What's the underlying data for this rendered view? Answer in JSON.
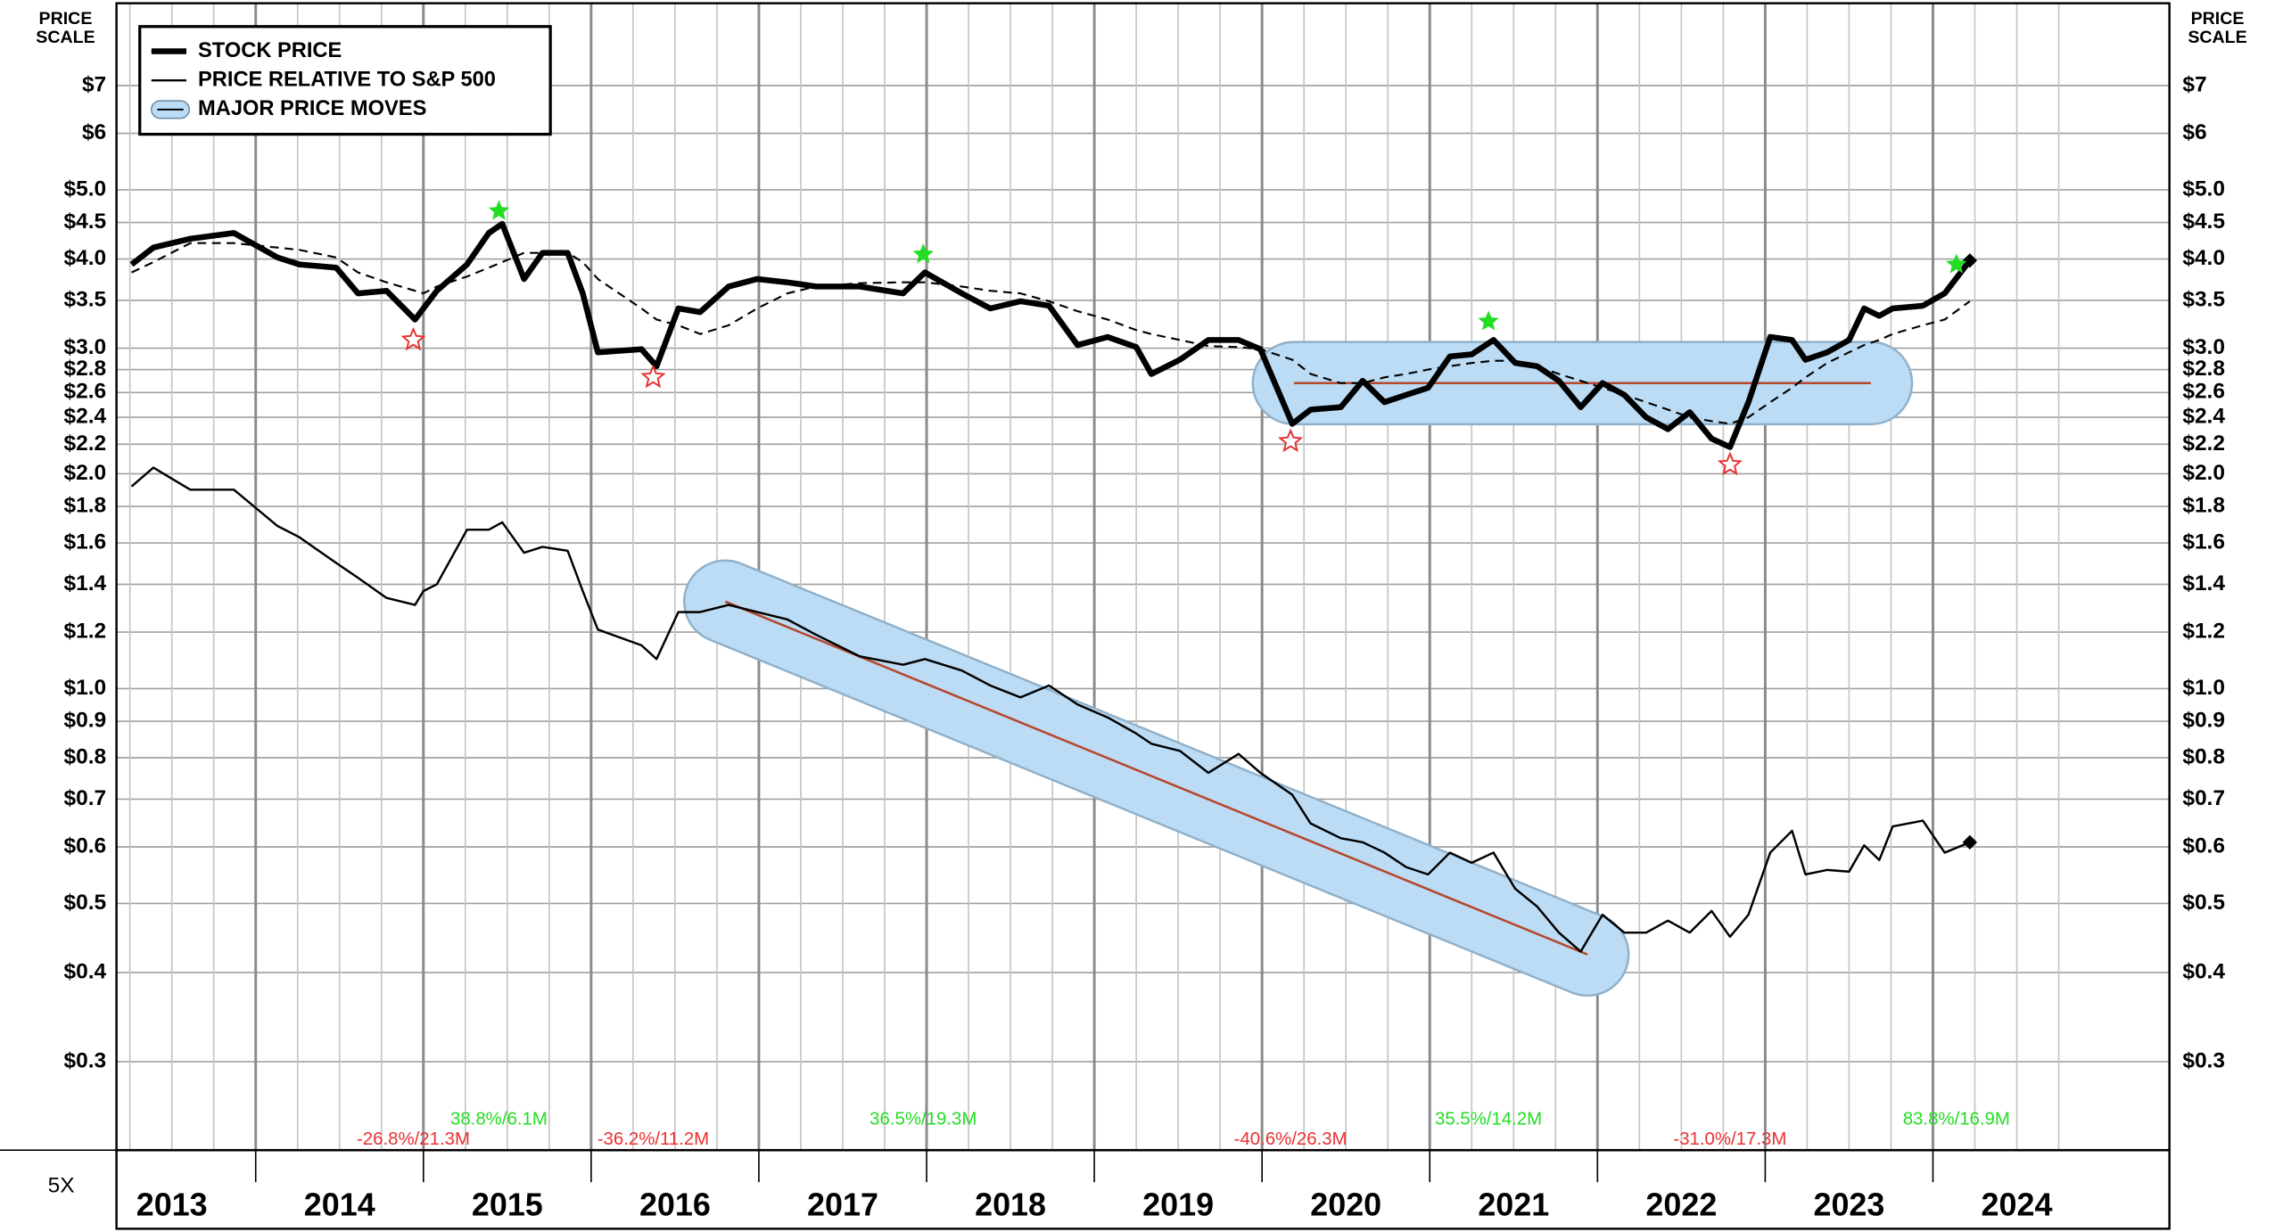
{
  "chart_data": {
    "type": "line",
    "price_scale_label": [
      "PRICE",
      "SCALE"
    ],
    "scale_factor_label": "5X",
    "log_scale": true,
    "grid": true,
    "legend_position": "upper left",
    "xlim": [
      2013.17,
      2025.41
    ],
    "xticks": [
      2013,
      2014,
      2015,
      2016,
      2017,
      2018,
      2019,
      2020,
      2021,
      2022,
      2023,
      2024
    ],
    "ylim": [
      0.2255,
      9.13
    ],
    "yticks": [
      {
        "value": 7,
        "label": "$7"
      },
      {
        "value": 6,
        "label": "$6"
      },
      {
        "value": 5,
        "label": "$5.0"
      },
      {
        "value": 4.5,
        "label": "$4.5"
      },
      {
        "value": 4,
        "label": "$4.0"
      },
      {
        "value": 3.5,
        "label": "$3.5"
      },
      {
        "value": 3,
        "label": "$3.0"
      },
      {
        "value": 2.8,
        "label": "$2.8"
      },
      {
        "value": 2.6,
        "label": "$2.6"
      },
      {
        "value": 2.4,
        "label": "$2.4"
      },
      {
        "value": 2.2,
        "label": "$2.2"
      },
      {
        "value": 2,
        "label": "$2.0"
      },
      {
        "value": 1.8,
        "label": "$1.8"
      },
      {
        "value": 1.6,
        "label": "$1.6"
      },
      {
        "value": 1.4,
        "label": "$1.4"
      },
      {
        "value": 1.2,
        "label": "$1.2"
      },
      {
        "value": 1,
        "label": "$1.0"
      },
      {
        "value": 0.9,
        "label": "$0.9"
      },
      {
        "value": 0.8,
        "label": "$0.8"
      },
      {
        "value": 0.7,
        "label": "$0.7"
      },
      {
        "value": 0.6,
        "label": "$0.6"
      },
      {
        "value": 0.5,
        "label": "$0.5"
      },
      {
        "value": 0.4,
        "label": "$0.4"
      },
      {
        "value": 0.3,
        "label": "$0.3"
      }
    ],
    "x": [
      2013.26,
      2013.39,
      2013.61,
      2013.87,
      2014.13,
      2014.26,
      2014.48,
      2014.61,
      2014.78,
      2014.95,
      2015.0,
      2015.08,
      2015.26,
      2015.39,
      2015.47,
      2015.6,
      2015.71,
      2015.86,
      2015.95,
      2016.04,
      2016.3,
      2016.39,
      2016.52,
      2016.65,
      2016.82,
      2016.99,
      2017.17,
      2017.34,
      2017.6,
      2017.86,
      2017.99,
      2018.21,
      2018.38,
      2018.56,
      2018.73,
      2018.9,
      2019.08,
      2019.25,
      2019.34,
      2019.51,
      2019.68,
      2019.86,
      2019.99,
      2020.18,
      2020.29,
      2020.47,
      2020.6,
      2020.73,
      2020.86,
      2020.99,
      2021.12,
      2021.25,
      2021.38,
      2021.51,
      2021.64,
      2021.77,
      2021.9,
      2022.03,
      2022.16,
      2022.29,
      2022.42,
      2022.55,
      2022.68,
      2022.79,
      2022.9,
      2023.03,
      2023.16,
      2023.24,
      2023.37,
      2023.5,
      2023.59,
      2023.68,
      2023.76,
      2023.94,
      2024.07,
      2024.22
    ],
    "series": [
      {
        "name": "STOCK PRICE",
        "color": "#000000",
        "line_width": 4,
        "values": [
          3.93,
          4.15,
          4.27,
          4.35,
          4.02,
          3.93,
          3.89,
          3.58,
          3.61,
          3.29,
          3.41,
          3.61,
          3.93,
          4.35,
          4.48,
          3.75,
          4.08,
          4.08,
          3.58,
          2.96,
          2.99,
          2.83,
          3.41,
          3.37,
          3.66,
          3.75,
          3.71,
          3.66,
          3.66,
          3.58,
          3.83,
          3.58,
          3.41,
          3.49,
          3.44,
          3.03,
          3.11,
          3.01,
          2.76,
          2.89,
          3.08,
          3.08,
          2.99,
          2.35,
          2.46,
          2.48,
          2.7,
          2.52,
          2.58,
          2.64,
          2.92,
          2.94,
          3.08,
          2.86,
          2.83,
          2.7,
          2.48,
          2.68,
          2.58,
          2.4,
          2.31,
          2.44,
          2.24,
          2.18,
          2.52,
          3.11,
          3.08,
          2.89,
          2.96,
          3.08,
          3.41,
          3.33,
          3.41,
          3.44,
          3.58,
          3.98
        ]
      },
      {
        "name": "PRICE RELATIVE TO S&P 500",
        "color": "#000000",
        "line_width": 1.5,
        "values": [
          1.92,
          2.04,
          1.9,
          1.9,
          1.69,
          1.63,
          1.5,
          1.43,
          1.34,
          1.31,
          1.37,
          1.4,
          1.67,
          1.67,
          1.71,
          1.55,
          1.58,
          1.56,
          1.37,
          1.21,
          1.15,
          1.1,
          1.28,
          1.28,
          1.31,
          1.28,
          1.25,
          1.19,
          1.11,
          1.08,
          1.1,
          1.06,
          1.01,
          0.972,
          1.01,
          0.95,
          0.911,
          0.865,
          0.837,
          0.818,
          0.762,
          0.81,
          0.762,
          0.71,
          0.647,
          0.617,
          0.609,
          0.589,
          0.562,
          0.549,
          0.589,
          0.57,
          0.589,
          0.524,
          0.495,
          0.455,
          0.428,
          0.482,
          0.455,
          0.455,
          0.473,
          0.455,
          0.488,
          0.449,
          0.482,
          0.589,
          0.632,
          0.549,
          0.557,
          0.554,
          0.603,
          0.575,
          0.641,
          0.653,
          0.589,
          0.609
        ]
      },
      {
        "color": "#000000",
        "line_width": 1.3,
        "dashed": true,
        "values": [
          3.83,
          3.96,
          4.21,
          4.21,
          4.15,
          4.12,
          4.02,
          3.83,
          3.71,
          3.61,
          3.58,
          3.66,
          3.78,
          3.89,
          3.96,
          4.08,
          4.08,
          4.08,
          3.96,
          3.75,
          3.41,
          3.29,
          3.23,
          3.14,
          3.23,
          3.41,
          3.58,
          3.66,
          3.7,
          3.71,
          3.71,
          3.66,
          3.61,
          3.58,
          3.49,
          3.38,
          3.29,
          3.18,
          3.14,
          3.08,
          3.02,
          3.01,
          2.99,
          2.89,
          2.76,
          2.68,
          2.68,
          2.73,
          2.76,
          2.8,
          2.83,
          2.86,
          2.88,
          2.88,
          2.83,
          2.76,
          2.7,
          2.64,
          2.58,
          2.52,
          2.46,
          2.4,
          2.37,
          2.35,
          2.4,
          2.52,
          2.64,
          2.73,
          2.86,
          2.96,
          3.03,
          3.08,
          3.14,
          3.23,
          3.29,
          3.49
        ]
      }
    ],
    "moves": {
      "name": "MAJOR PRICE MOVES",
      "color": "#bcdcf5",
      "line_color": "#b5482e",
      "items": [
        {
          "x": [
            2016.8,
            2021.94
          ],
          "y": [
            1.324,
            0.424
          ]
        },
        {
          "x": [
            2020.19,
            2023.63
          ],
          "y": [
            2.68,
            2.68
          ]
        }
      ]
    },
    "markers": [
      {
        "x": 2014.94,
        "y": 3.08,
        "kind": "low",
        "color": "#e83030",
        "label": "-26.8%/21.3M"
      },
      {
        "x": 2015.45,
        "y": 4.67,
        "kind": "high",
        "color": "#22dd22",
        "label": "38.8%/6.1M"
      },
      {
        "x": 2016.37,
        "y": 2.73,
        "kind": "low",
        "color": "#e83030",
        "label": "-36.2%/11.2M"
      },
      {
        "x": 2017.98,
        "y": 4.06,
        "kind": "high",
        "color": "#22dd22",
        "label": "36.5%/19.3M"
      },
      {
        "x": 2020.17,
        "y": 2.22,
        "kind": "low",
        "color": "#e83030",
        "label": "-40.6%/26.3M"
      },
      {
        "x": 2021.35,
        "y": 3.27,
        "kind": "high",
        "color": "#22dd22",
        "label": "35.5%/14.2M"
      },
      {
        "x": 2022.79,
        "y": 2.06,
        "kind": "low",
        "color": "#e83030",
        "label": "-31.0%/17.3M"
      },
      {
        "x": 2024.14,
        "y": 3.93,
        "kind": "high",
        "color": "#22dd22",
        "label": "83.8%/16.9M"
      }
    ]
  }
}
